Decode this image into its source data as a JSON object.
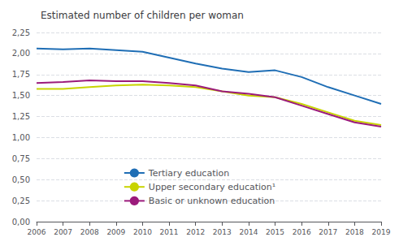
{
  "chart_data": {
    "type": "line",
    "title": "Estimated number of children per woman",
    "x": [
      2006,
      2007,
      2008,
      2009,
      2010,
      2011,
      2012,
      2013,
      2014,
      2015,
      2016,
      2017,
      2018,
      2019
    ],
    "series": [
      {
        "name": "Tertiary education",
        "color": "#1f6eb5",
        "values": [
          2.06,
          2.05,
          2.06,
          2.04,
          2.02,
          1.95,
          1.88,
          1.82,
          1.78,
          1.8,
          1.72,
          1.6,
          1.5,
          1.4
        ]
      },
      {
        "name": "Upper secondary education¹",
        "color": "#c8d400",
        "values": [
          1.58,
          1.58,
          1.6,
          1.62,
          1.63,
          1.62,
          1.6,
          1.55,
          1.5,
          1.48,
          1.4,
          1.3,
          1.2,
          1.15
        ]
      },
      {
        "name": "Basic or unknown education",
        "color": "#9b1a7b",
        "values": [
          1.65,
          1.66,
          1.68,
          1.67,
          1.67,
          1.65,
          1.62,
          1.55,
          1.52,
          1.48,
          1.38,
          1.28,
          1.18,
          1.13
        ]
      }
    ],
    "xlim": [
      2006,
      2019
    ],
    "xticks": [
      2006,
      2007,
      2008,
      2009,
      2010,
      2011,
      2012,
      2013,
      2014,
      2015,
      2016,
      2017,
      2018,
      2019
    ],
    "ylim": [
      0,
      2.25
    ],
    "yticks": [
      {
        "value": 0,
        "label": "0,00"
      },
      {
        "value": 0.25,
        "label": "0,25"
      },
      {
        "value": 0.5,
        "label": "0,50"
      },
      {
        "value": 0.75,
        "label": "0,75"
      },
      {
        "value": 1,
        "label": "1,00"
      },
      {
        "value": 1.25,
        "label": "1,25"
      },
      {
        "value": 1.5,
        "label": "1,50"
      },
      {
        "value": 1.75,
        "label": "1,75"
      },
      {
        "value": 2,
        "label": "2,00"
      },
      {
        "value": 2.25,
        "label": "2,25"
      }
    ],
    "grid": true,
    "legend": "bottom"
  }
}
